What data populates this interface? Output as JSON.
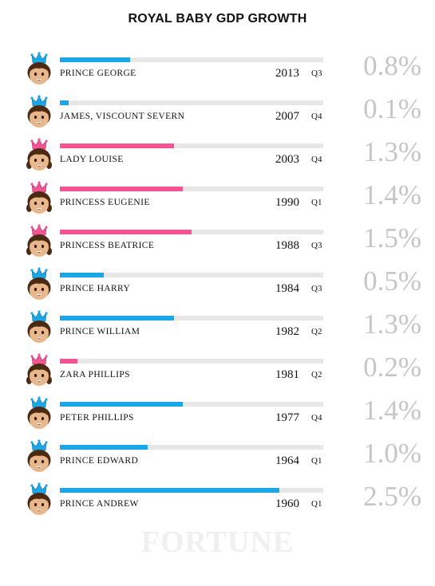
{
  "title": "ROYAL BABY GDP GROWTH",
  "watermark": "FORTUNE",
  "colors": {
    "prince": "#1ba6e8",
    "princess": "#f25594",
    "track": "#e7e7e8",
    "value_text": "#c6c6c6"
  },
  "chart_data": {
    "type": "bar",
    "title": "ROYAL BABY GDP GROWTH",
    "xlabel": "",
    "ylabel": "",
    "xlim": [
      0,
      3.0
    ],
    "grid": false,
    "value_format": "percent",
    "rows": [
      {
        "name": "PRINCE GEORGE",
        "year": "2013",
        "quarter": "Q3",
        "value": 0.8,
        "label": "0.8%",
        "icon": "prince-emoji-icon",
        "color": "#1ba6e8"
      },
      {
        "name": "JAMES, VISCOUNT SEVERN",
        "year": "2007",
        "quarter": "Q4",
        "value": 0.1,
        "label": "0.1%",
        "icon": "prince-emoji-icon",
        "color": "#1ba6e8"
      },
      {
        "name": "LADY LOUISE",
        "year": "2003",
        "quarter": "Q4",
        "value": 1.3,
        "label": "1.3%",
        "icon": "princess-emoji-icon",
        "color": "#f25594"
      },
      {
        "name": "PRINCESS EUGENIE",
        "year": "1990",
        "quarter": "Q1",
        "value": 1.4,
        "label": "1.4%",
        "icon": "princess-emoji-icon",
        "color": "#f25594"
      },
      {
        "name": "PRINCESS BEATRICE",
        "year": "1988",
        "quarter": "Q3",
        "value": 1.5,
        "label": "1.5%",
        "icon": "princess-emoji-icon",
        "color": "#f25594"
      },
      {
        "name": "PRINCE HARRY",
        "year": "1984",
        "quarter": "Q3",
        "value": 0.5,
        "label": "0.5%",
        "icon": "prince-emoji-icon",
        "color": "#1ba6e8"
      },
      {
        "name": "PRINCE WILLIAM",
        "year": "1982",
        "quarter": "Q2",
        "value": 1.3,
        "label": "1.3%",
        "icon": "prince-emoji-icon",
        "color": "#1ba6e8"
      },
      {
        "name": "ZARA PHILLIPS",
        "year": "1981",
        "quarter": "Q2",
        "value": 0.2,
        "label": "0.2%",
        "icon": "princess-emoji-icon",
        "color": "#f25594"
      },
      {
        "name": "PETER PHILLIPS",
        "year": "1977",
        "quarter": "Q4",
        "value": 1.4,
        "label": "1.4%",
        "icon": "prince-emoji-icon",
        "color": "#1ba6e8"
      },
      {
        "name": "PRINCE EDWARD",
        "year": "1964",
        "quarter": "Q1",
        "value": 1.0,
        "label": "1.0%",
        "icon": "prince-emoji-icon",
        "color": "#1ba6e8"
      },
      {
        "name": "PRINCE ANDREW",
        "year": "1960",
        "quarter": "Q1",
        "value": 2.5,
        "label": "2.5%",
        "icon": "prince-emoji-icon",
        "color": "#1ba6e8"
      }
    ]
  }
}
